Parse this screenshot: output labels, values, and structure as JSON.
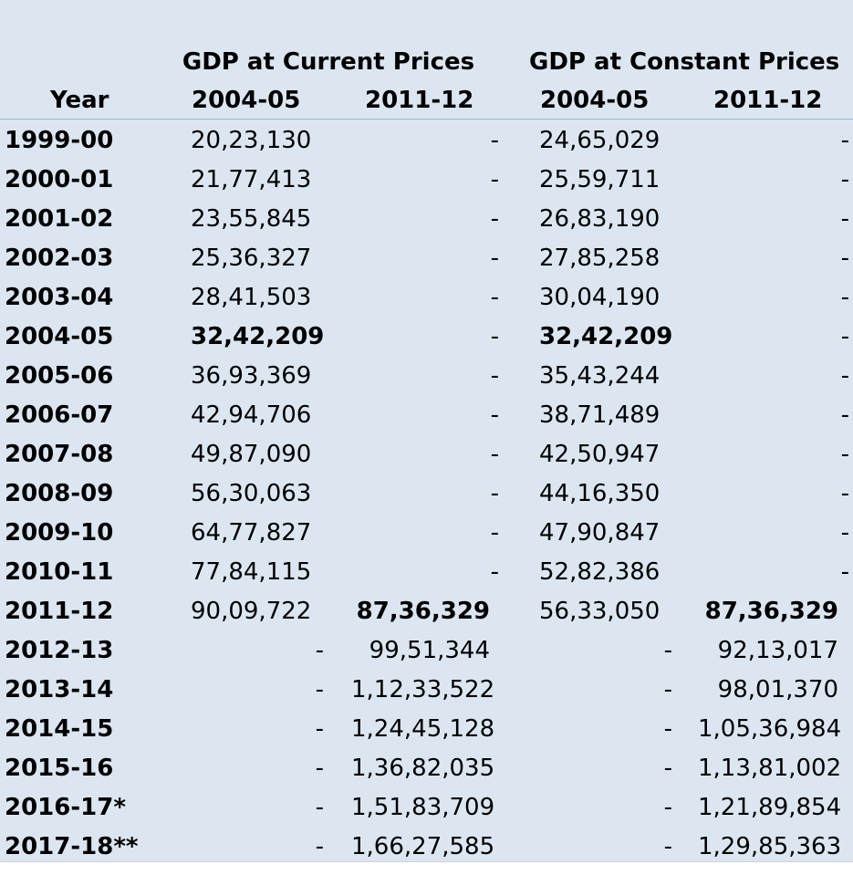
{
  "headers": {
    "year": "Year",
    "group_current": "GDP at Current Prices",
    "group_constant": "GDP at Constant Prices",
    "sub": [
      "2004-05",
      "2011-12",
      "2004-05",
      "2011-12"
    ]
  },
  "rows": [
    {
      "year": "1999-00",
      "c1": "20,23,130",
      "c2": "-",
      "c3": "24,65,029",
      "c4": "-"
    },
    {
      "year": "2000-01",
      "c1": "21,77,413",
      "c2": "-",
      "c3": "25,59,711",
      "c4": "-"
    },
    {
      "year": "2001-02",
      "c1": "23,55,845",
      "c2": "-",
      "c3": "26,83,190",
      "c4": "-"
    },
    {
      "year": "2002-03",
      "c1": "25,36,327",
      "c2": "-",
      "c3": "27,85,258",
      "c4": "-"
    },
    {
      "year": "2003-04",
      "c1": "28,41,503",
      "c2": "-",
      "c3": "30,04,190",
      "c4": "-"
    },
    {
      "year": "2004-05",
      "c1": "32,42,209",
      "c2": "-",
      "c3": "32,42,209",
      "c4": "-"
    },
    {
      "year": "2005-06",
      "c1": "36,93,369",
      "c2": "-",
      "c3": "35,43,244",
      "c4": "-"
    },
    {
      "year": "2006-07",
      "c1": "42,94,706",
      "c2": "-",
      "c3": "38,71,489",
      "c4": "-"
    },
    {
      "year": "2007-08",
      "c1": "49,87,090",
      "c2": "-",
      "c3": "42,50,947",
      "c4": "-"
    },
    {
      "year": "2008-09",
      "c1": "56,30,063",
      "c2": "-",
      "c3": "44,16,350",
      "c4": "-"
    },
    {
      "year": "2009-10",
      "c1": "64,77,827",
      "c2": "-",
      "c3": "47,90,847",
      "c4": "-"
    },
    {
      "year": "2010-11",
      "c1": "77,84,115",
      "c2": "-",
      "c3": "52,82,386",
      "c4": "-"
    },
    {
      "year": "2011-12",
      "c1": "90,09,722",
      "c2": "87,36,329",
      "c3": "56,33,050",
      "c4": "87,36,329"
    },
    {
      "year": "2012-13",
      "c1": "-",
      "c2": "99,51,344",
      "c3": "-",
      "c4": "92,13,017"
    },
    {
      "year": "2013-14",
      "c1": "-",
      "c2": "1,12,33,522",
      "c3": "-",
      "c4": "98,01,370"
    },
    {
      "year": "2014-15",
      "c1": "-",
      "c2": "1,24,45,128",
      "c3": "-",
      "c4": "1,05,36,984"
    },
    {
      "year": "2015-16",
      "c1": "-",
      "c2": "1,36,82,035",
      "c3": "-",
      "c4": "1,13,81,002"
    },
    {
      "year": "2016-17*",
      "c1": "-",
      "c2": "1,51,83,709",
      "c3": "-",
      "c4": "1,21,89,854"
    },
    {
      "year": "2017-18**",
      "c1": "-",
      "c2": "1,66,27,585",
      "c3": "-",
      "c4": "1,29,85,363"
    }
  ],
  "bold_cells": [
    {
      "row": 5,
      "col": "c1"
    },
    {
      "row": 5,
      "col": "c3"
    },
    {
      "row": 12,
      "col": "c2"
    },
    {
      "row": 12,
      "col": "c4"
    }
  ]
}
